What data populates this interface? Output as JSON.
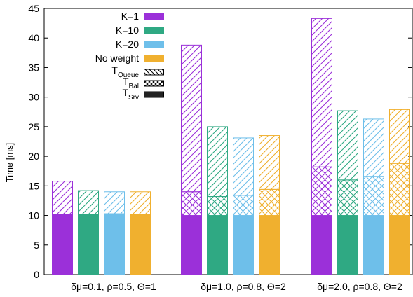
{
  "chart_data": {
    "type": "bar",
    "ylabel": "Time [ms]",
    "ylim": [
      0,
      45
    ],
    "yticks": [
      "0",
      "5",
      "10",
      "15",
      "20",
      "25",
      "30",
      "35",
      "40",
      "45"
    ],
    "grid": false,
    "stacked": true,
    "categories": [
      "δμ=0.1, ρ=0.5, Θ=1",
      "δμ=1.0, ρ=0.8, Θ=2",
      "δμ=2.0, ρ=0.8, Θ=2"
    ],
    "series": [
      {
        "name": "K=1",
        "color": "#9b30d9",
        "srv": [
          10.2,
          10.0,
          10.0
        ],
        "bal": [
          0.0,
          4.0,
          8.2
        ],
        "queue": [
          5.6,
          24.8,
          25.1
        ]
      },
      {
        "name": "K=10",
        "color": "#2fa983",
        "srv": [
          10.2,
          10.0,
          10.0
        ],
        "bal": [
          0.0,
          3.2,
          6.0
        ],
        "queue": [
          4.0,
          11.8,
          11.7
        ]
      },
      {
        "name": "K=20",
        "color": "#6ebfea",
        "srv": [
          10.3,
          10.0,
          10.0
        ],
        "bal": [
          0.0,
          3.4,
          6.6
        ],
        "queue": [
          3.7,
          9.7,
          9.7
        ]
      },
      {
        "name": "No weight",
        "color": "#f0b02f",
        "srv": [
          10.2,
          10.0,
          10.0
        ],
        "bal": [
          0.0,
          4.4,
          8.8
        ],
        "queue": [
          3.8,
          9.1,
          9.1
        ]
      }
    ],
    "components_legend": [
      {
        "name": "T",
        "sub": "Queue",
        "pattern": "diag"
      },
      {
        "name": "T",
        "sub": "Bal",
        "pattern": "cross"
      },
      {
        "name": "T",
        "sub": "Srv",
        "pattern": "solid"
      }
    ],
    "legend_position": "top-left"
  }
}
